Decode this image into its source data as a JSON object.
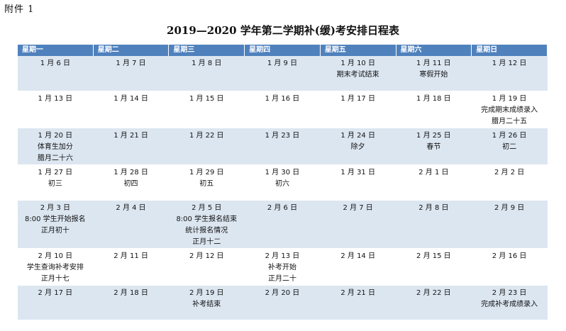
{
  "annex": "附件 1",
  "title": "2019—2020 学年第二学期补(缓)考安排日程表",
  "weekdays": [
    "星期一",
    "星期二",
    "星期三",
    "星期四",
    "星期五",
    "星期六",
    "星期日"
  ],
  "weeks": [
    [
      {
        "date": "1 月 6 日",
        "notes": []
      },
      {
        "date": "1 月 7 日",
        "notes": []
      },
      {
        "date": "1 月 8 日",
        "notes": []
      },
      {
        "date": "1 月 9 日",
        "notes": []
      },
      {
        "date": "1 月 10 日",
        "notes": [
          "期末考试结束"
        ]
      },
      {
        "date": "1 月 11 日",
        "notes": [
          "寒假开始"
        ]
      },
      {
        "date": "1 月 12 日",
        "notes": []
      }
    ],
    [
      {
        "date": "1 月 13 日",
        "notes": []
      },
      {
        "date": "1 月 14 日",
        "notes": []
      },
      {
        "date": "1 月 15 日",
        "notes": []
      },
      {
        "date": "1 月 16 日",
        "notes": []
      },
      {
        "date": "1 月 17 日",
        "notes": []
      },
      {
        "date": "1 月 18 日",
        "notes": []
      },
      {
        "date": "1 月 19 日",
        "notes": [
          "完成期末成绩录入",
          "腊月二十五"
        ]
      }
    ],
    [
      {
        "date": "1 月 20 日",
        "notes": [
          "体育生加分",
          "腊月二十六"
        ]
      },
      {
        "date": "1 月 21 日",
        "notes": []
      },
      {
        "date": "1 月 22 日",
        "notes": []
      },
      {
        "date": "1 月 23 日",
        "notes": []
      },
      {
        "date": "1 月 24 日",
        "notes": [
          "除夕"
        ]
      },
      {
        "date": "1 月 25 日",
        "notes": [
          "春节"
        ]
      },
      {
        "date": "1 月 26 日",
        "notes": [
          "初二"
        ]
      }
    ],
    [
      {
        "date": "1 月 27 日",
        "notes": [
          "初三"
        ]
      },
      {
        "date": "1 月 28 日",
        "notes": [
          "初四"
        ]
      },
      {
        "date": "1 月 29 日",
        "notes": [
          "初五"
        ]
      },
      {
        "date": "1 月 30 日",
        "notes": [
          "初六"
        ]
      },
      {
        "date": "1 月 31 日",
        "notes": []
      },
      {
        "date": "2 月 1 日",
        "notes": []
      },
      {
        "date": "2 月 2 日",
        "notes": []
      }
    ],
    [
      {
        "date": "2 月 3 日",
        "notes": [
          "8:00 学生开始报名",
          "正月初十"
        ]
      },
      {
        "date": "2 月 4 日",
        "notes": []
      },
      {
        "date": "2 月 5 日",
        "notes": [
          "8:00 学生报名结束",
          "统计报名情况",
          "正月十二"
        ]
      },
      {
        "date": "2 月 6 日",
        "notes": []
      },
      {
        "date": "2 月 7 日",
        "notes": []
      },
      {
        "date": "2 月 8 日",
        "notes": []
      },
      {
        "date": "2 月 9 日",
        "notes": []
      }
    ],
    [
      {
        "date": "2 月 10 日",
        "notes": [
          "学生查询补考安排",
          "正月十七"
        ]
      },
      {
        "date": "2 月 11 日",
        "notes": []
      },
      {
        "date": "2 月 12 日",
        "notes": []
      },
      {
        "date": "2 月 13 日",
        "notes": [
          "补考开始",
          "正月二十"
        ]
      },
      {
        "date": "2 月 14 日",
        "notes": []
      },
      {
        "date": "2 月 15 日",
        "notes": []
      },
      {
        "date": "2 月 16 日",
        "notes": []
      }
    ],
    [
      {
        "date": "2 月 17 日",
        "notes": []
      },
      {
        "date": "2 月 18 日",
        "notes": []
      },
      {
        "date": "2 月 19 日",
        "notes": [
          "补考结束"
        ]
      },
      {
        "date": "2 月 20 日",
        "notes": []
      },
      {
        "date": "2 月 21 日",
        "notes": []
      },
      {
        "date": "2 月 22 日",
        "notes": []
      },
      {
        "date": "2 月 23 日",
        "notes": [
          "完成补考成绩录入"
        ]
      }
    ]
  ]
}
